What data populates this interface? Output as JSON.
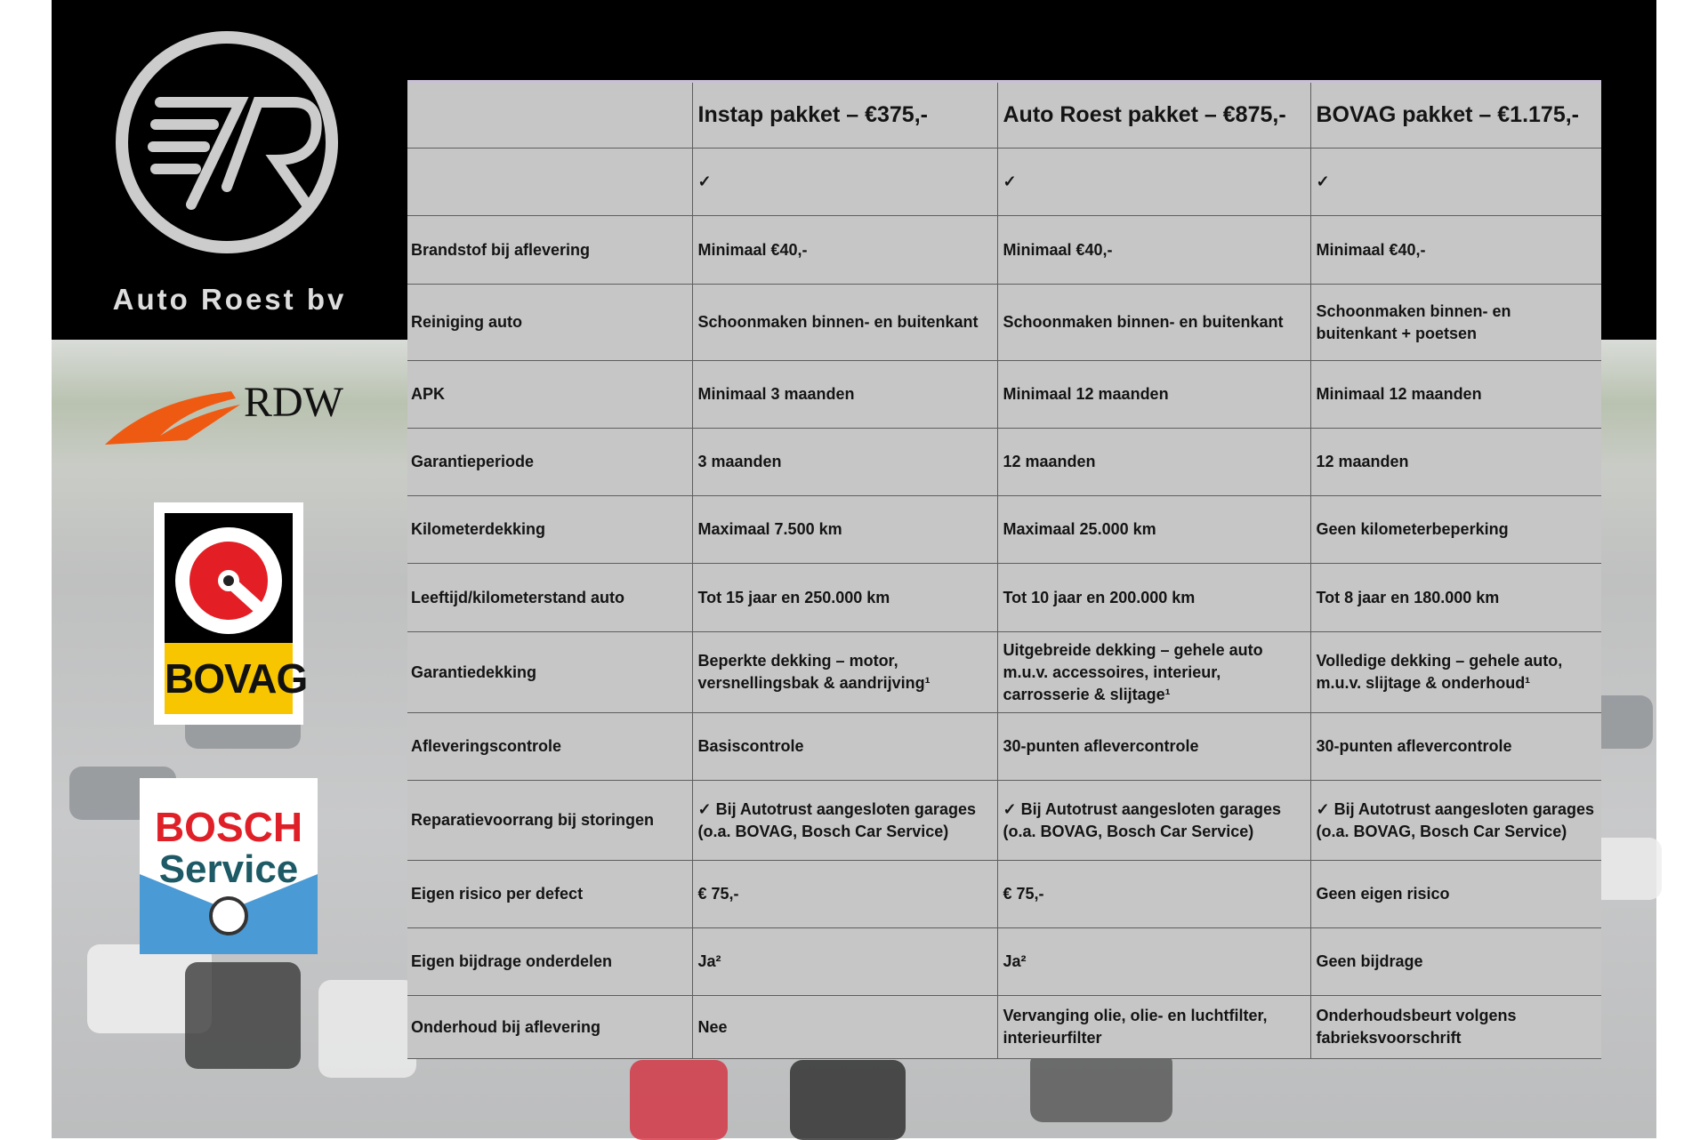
{
  "brand": {
    "name": "Auto Roest bv",
    "logos": [
      "RDW",
      "BOVAG",
      "BOSCH Service"
    ],
    "colors": {
      "rdw_orange": "#ef5a13",
      "bovag_red": "#e31e24",
      "bovag_yellow": "#f7c600",
      "bosch_red": "#e02028",
      "bosch_teal": "#1d5a66",
      "bosch_blue": "#4a9ad6"
    }
  },
  "rdw": {
    "label": "RDW"
  },
  "bovag": {
    "label": "BOVAG"
  },
  "bosch": {
    "line1": "BOSCH",
    "line2": "Service"
  },
  "table": {
    "headers": [
      "",
      "Instap pakket – €375,-",
      "Auto Roest pakket – €875,-",
      "BOVAG pakket – €1.175,-"
    ],
    "rows": [
      [
        "",
        "✓",
        "✓",
        "✓"
      ],
      [
        "Brandstof bij aflevering",
        "Minimaal €40,-",
        "Minimaal €40,-",
        "Minimaal €40,-"
      ],
      [
        "Reiniging auto",
        "Schoonmaken binnen- en buitenkant",
        "Schoonmaken binnen- en buitenkant",
        "Schoonmaken binnen- en buitenkant + poetsen"
      ],
      [
        "APK",
        "Minimaal 3 maanden",
        "Minimaal 12 maanden",
        "Minimaal 12 maanden"
      ],
      [
        "Garantieperiode",
        "3 maanden",
        "12 maanden",
        "12 maanden"
      ],
      [
        "Kilometerdekking",
        "Maximaal 7.500 km",
        "Maximaal 25.000 km",
        "Geen kilometerbeperking"
      ],
      [
        "Leeftijd/kilometerstand auto",
        "Tot 15 jaar en 250.000 km",
        "Tot 10 jaar en 200.000 km",
        "Tot 8 jaar en 180.000 km"
      ],
      [
        "Garantiedekking",
        "Beperkte dekking – motor, versnellingsbak & aandrijving¹",
        "Uitgebreide dekking – gehele auto m.u.v. accessoires, interieur, carrosserie & slijtage¹",
        "Volledige dekking – gehele auto, m.u.v. slijtage & onderhoud¹"
      ],
      [
        "Afleveringscontrole",
        "Basiscontrole",
        "30-punten aflevercontrole",
        "30-punten aflevercontrole"
      ],
      [
        "Reparatievoorrang bij storingen",
        "✓ Bij Autotrust aangesloten garages (o.a. BOVAG, Bosch Car Service)",
        "✓ Bij Autotrust aangesloten garages (o.a. BOVAG, Bosch Car Service)",
        "✓ Bij Autotrust aangesloten garages (o.a. BOVAG, Bosch Car Service)"
      ],
      [
        "Eigen risico per defect",
        "€ 75,-",
        "€ 75,-",
        "Geen eigen risico"
      ],
      [
        "Eigen bijdrage onderdelen",
        "Ja²",
        "Ja²",
        "Geen bijdrage"
      ],
      [
        "Onderhoud bij aflevering",
        "Nee",
        "Vervanging olie, olie- en luchtfilter, interieurfilter",
        "Onderhoudsbeurt volgens fabrieksvoorschrift"
      ]
    ]
  }
}
